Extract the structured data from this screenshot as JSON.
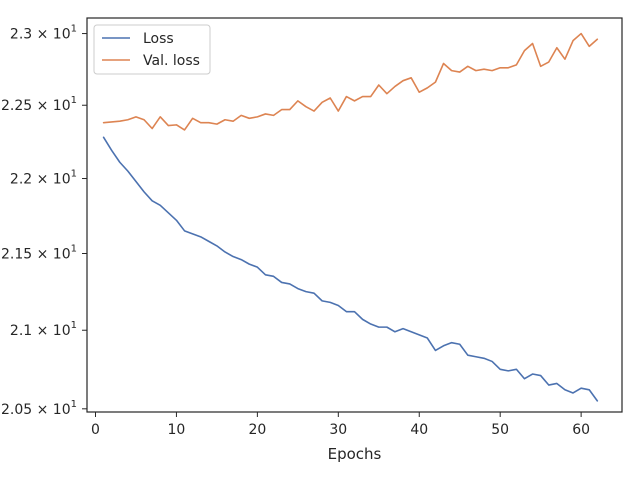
{
  "chart_data": {
    "type": "line",
    "title": "",
    "xlabel": "Epochs",
    "ylabel": "",
    "xlim": [
      -1.05,
      65.05
    ],
    "ylim": [
      20.48,
      23.11
    ],
    "x_ticks": [
      0,
      10,
      20,
      30,
      40,
      50,
      60
    ],
    "x_tick_labels": [
      "0",
      "10",
      "20",
      "30",
      "40",
      "50",
      "60"
    ],
    "y_ticks": [
      20.5,
      21.0,
      21.5,
      22.0,
      22.5,
      23.0
    ],
    "y_tick_labels": [
      {
        "mantissa": "2.05",
        "exp": "1"
      },
      {
        "mantissa": "2.1",
        "exp": "1"
      },
      {
        "mantissa": "2.15",
        "exp": "1"
      },
      {
        "mantissa": "2.2",
        "exp": "1"
      },
      {
        "mantissa": "2.25",
        "exp": "1"
      },
      {
        "mantissa": "2.3",
        "exp": "1"
      }
    ],
    "y_scale": "log",
    "grid": false,
    "legend_position": "top-left",
    "series": [
      {
        "name": "Loss",
        "color": "#4c72b0",
        "x": [
          1,
          2,
          3,
          4,
          5,
          6,
          7,
          8,
          9,
          10,
          11,
          12,
          13,
          14,
          15,
          16,
          17,
          18,
          19,
          20,
          21,
          22,
          23,
          24,
          25,
          26,
          27,
          28,
          29,
          30,
          31,
          32,
          33,
          34,
          35,
          36,
          37,
          38,
          39,
          40,
          41,
          42,
          43,
          44,
          45,
          46,
          47,
          48,
          49,
          50,
          51,
          52,
          53,
          54,
          55,
          56,
          57,
          58,
          59,
          60,
          61,
          62
        ],
        "values": [
          22.28,
          22.19,
          22.11,
          22.05,
          21.98,
          21.91,
          21.85,
          21.82,
          21.77,
          21.72,
          21.65,
          21.63,
          21.61,
          21.58,
          21.55,
          21.51,
          21.48,
          21.46,
          21.43,
          21.41,
          21.36,
          21.35,
          21.31,
          21.3,
          21.27,
          21.25,
          21.24,
          21.19,
          21.18,
          21.16,
          21.12,
          21.12,
          21.07,
          21.04,
          21.02,
          21.02,
          20.99,
          21.01,
          20.99,
          20.97,
          20.95,
          20.87,
          20.9,
          20.92,
          20.91,
          20.84,
          20.83,
          20.82,
          20.8,
          20.75,
          20.74,
          20.75,
          20.69,
          20.72,
          20.71,
          20.65,
          20.66,
          20.62,
          20.6,
          20.63,
          20.62,
          20.55
        ]
      },
      {
        "name": "Val. loss",
        "color": "#dd8452",
        "x": [
          1,
          2,
          3,
          4,
          5,
          6,
          7,
          8,
          9,
          10,
          11,
          12,
          13,
          14,
          15,
          16,
          17,
          18,
          19,
          20,
          21,
          22,
          23,
          24,
          25,
          26,
          27,
          28,
          29,
          30,
          31,
          32,
          33,
          34,
          35,
          36,
          37,
          38,
          39,
          40,
          41,
          42,
          43,
          44,
          45,
          46,
          47,
          48,
          49,
          50,
          51,
          52,
          53,
          54,
          55,
          56,
          57,
          58,
          59,
          60,
          61,
          62
        ],
        "values": [
          22.38,
          22.385,
          22.39,
          22.4,
          22.42,
          22.4,
          22.34,
          22.42,
          22.36,
          22.365,
          22.33,
          22.41,
          22.38,
          22.38,
          22.37,
          22.4,
          22.39,
          22.43,
          22.41,
          22.42,
          22.44,
          22.43,
          22.47,
          22.47,
          22.53,
          22.49,
          22.46,
          22.52,
          22.55,
          22.46,
          22.56,
          22.53,
          22.56,
          22.56,
          22.64,
          22.58,
          22.63,
          22.67,
          22.69,
          22.59,
          22.62,
          22.66,
          22.79,
          22.74,
          22.73,
          22.77,
          22.74,
          22.75,
          22.74,
          22.76,
          22.76,
          22.78,
          22.88,
          22.93,
          22.77,
          22.8,
          22.9,
          22.82,
          22.95,
          23.0,
          22.91,
          22.96
        ]
      }
    ]
  }
}
